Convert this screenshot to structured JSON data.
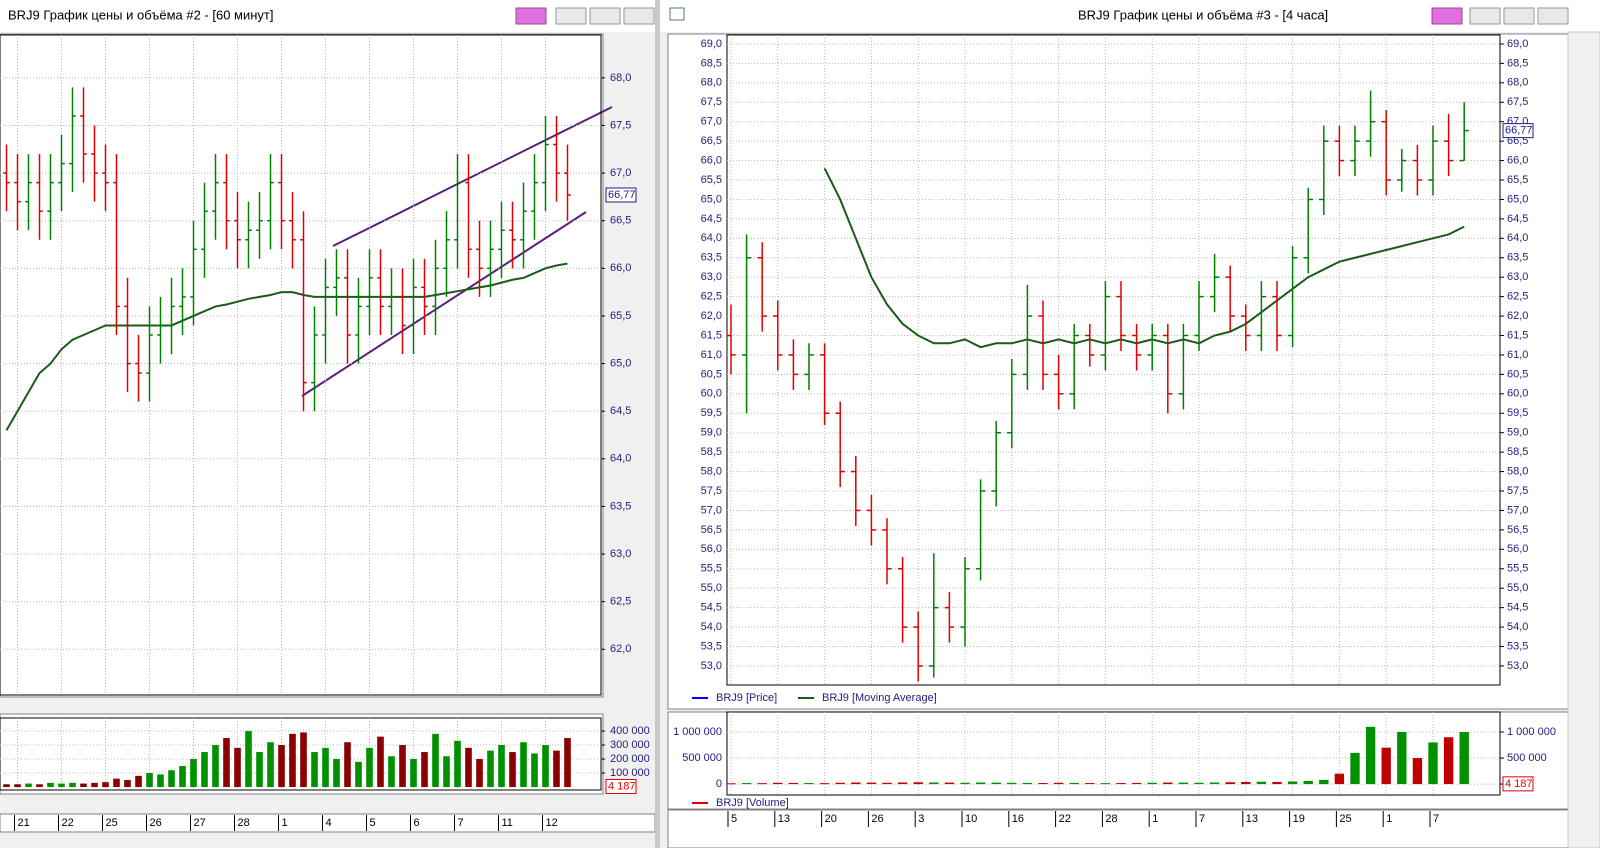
{
  "chart_data": [
    {
      "type": "ohlc",
      "title": "BRJ9 График цены и объёма #2 - [60 минут]",
      "grid": true,
      "categories": [
        null,
        "21",
        null,
        null,
        null,
        "22",
        null,
        null,
        null,
        "25",
        null,
        null,
        null,
        "26",
        null,
        null,
        null,
        "27",
        null,
        null,
        null,
        "28",
        null,
        null,
        null,
        "1",
        null,
        null,
        null,
        "4",
        null,
        null,
        null,
        "5",
        null,
        null,
        null,
        "6",
        null,
        null,
        null,
        "7",
        null,
        null,
        null,
        "11",
        null,
        null,
        null,
        "12",
        null,
        null
      ],
      "ylim": [
        61.52,
        68.45
      ],
      "yticks": [
        {
          "value": 62.0,
          "label": "62,0"
        },
        {
          "value": 62.5,
          "label": "62,5"
        },
        {
          "value": 63.0,
          "label": "63,0"
        },
        {
          "value": 63.5,
          "label": "63,5"
        },
        {
          "value": 64.0,
          "label": "64,0"
        },
        {
          "value": 64.5,
          "label": "64,5"
        },
        {
          "value": 65.0,
          "label": "65,0"
        },
        {
          "value": 65.5,
          "label": "65,5"
        },
        {
          "value": 66.0,
          "label": "66,0"
        },
        {
          "value": 66.5,
          "label": "66,5"
        },
        {
          "value": 67.0,
          "label": "67,0"
        },
        {
          "value": 67.5,
          "label": "67,5"
        },
        {
          "value": 68.0,
          "label": "68,0"
        }
      ],
      "price": {
        "up_color": "#008000",
        "down_color": "#e00000",
        "open": [
          67.0,
          66.9,
          66.7,
          66.9,
          66.6,
          66.9,
          67.1,
          67.6,
          67.2,
          67.0,
          66.9,
          65.6,
          65.0,
          64.9,
          65.3,
          65.4,
          65.6,
          65.7,
          66.2,
          66.6,
          66.9,
          66.5,
          66.3,
          66.4,
          66.5,
          66.9,
          66.5,
          66.3,
          64.8,
          65.3,
          65.8,
          65.9,
          65.3,
          65.6,
          65.9,
          65.6,
          65.7,
          65.4,
          65.8,
          65.6,
          66.0,
          66.3,
          66.9,
          66.2,
          66.0,
          66.2,
          66.4,
          66.3,
          66.6,
          66.9,
          67.3,
          67.0
        ],
        "high": [
          67.3,
          67.2,
          67.2,
          67.2,
          67.2,
          67.4,
          67.9,
          67.9,
          67.5,
          67.3,
          67.2,
          65.9,
          65.3,
          65.6,
          65.7,
          65.9,
          66.0,
          66.5,
          66.9,
          67.2,
          67.2,
          66.8,
          66.7,
          66.8,
          67.2,
          67.2,
          66.8,
          66.6,
          65.6,
          66.1,
          66.2,
          66.2,
          65.9,
          66.2,
          66.2,
          66.0,
          66.0,
          66.1,
          66.1,
          66.3,
          66.6,
          67.2,
          67.2,
          66.5,
          66.5,
          66.7,
          66.7,
          66.9,
          67.2,
          67.6,
          67.6,
          67.3
        ],
        "low": [
          66.6,
          66.4,
          66.4,
          66.3,
          66.3,
          66.6,
          66.8,
          66.9,
          66.7,
          66.6,
          65.3,
          64.7,
          64.6,
          64.6,
          65.0,
          65.1,
          65.3,
          65.4,
          65.9,
          66.3,
          66.2,
          66.0,
          66.0,
          66.1,
          66.2,
          66.2,
          66.0,
          64.5,
          64.5,
          65.0,
          65.5,
          65.0,
          65.0,
          65.3,
          65.3,
          65.3,
          65.1,
          65.1,
          65.3,
          65.3,
          65.7,
          66.0,
          65.9,
          65.7,
          65.7,
          65.9,
          66.0,
          66.0,
          66.3,
          66.6,
          66.7,
          66.5
        ],
        "close": [
          66.9,
          66.7,
          66.9,
          66.6,
          66.9,
          67.1,
          67.6,
          67.2,
          67.0,
          66.9,
          65.6,
          65.0,
          64.9,
          65.3,
          65.4,
          65.6,
          65.7,
          66.2,
          66.6,
          66.9,
          66.5,
          66.3,
          66.4,
          66.5,
          66.9,
          66.5,
          66.3,
          64.8,
          65.3,
          65.8,
          65.9,
          65.3,
          65.6,
          65.9,
          65.6,
          65.7,
          65.4,
          65.8,
          65.6,
          66.0,
          66.3,
          66.9,
          66.2,
          66.0,
          66.2,
          66.4,
          66.3,
          66.6,
          66.9,
          67.3,
          67.0,
          66.77
        ]
      },
      "moving_average": {
        "color": "#1a5c1a",
        "values": [
          64.3,
          64.5,
          64.7,
          64.9,
          65.0,
          65.15,
          65.25,
          65.3,
          65.35,
          65.4,
          65.4,
          65.4,
          65.4,
          65.4,
          65.4,
          65.4,
          65.45,
          65.5,
          65.55,
          65.6,
          65.62,
          65.65,
          65.68,
          65.7,
          65.72,
          65.75,
          65.75,
          65.72,
          65.7,
          65.7,
          65.7,
          65.7,
          65.7,
          65.7,
          65.7,
          65.7,
          65.7,
          65.7,
          65.7,
          65.72,
          65.74,
          65.76,
          65.78,
          65.8,
          65.82,
          65.85,
          65.88,
          65.9,
          65.95,
          66.0,
          66.03,
          66.05
        ]
      },
      "volume": {
        "up_color": "#009000",
        "down_color": "#8b0000",
        "ylim": [
          -21000,
          493000
        ],
        "yticks": [
          {
            "value": 100000,
            "label": "100 000"
          },
          {
            "value": 200000,
            "label": "200 000"
          },
          {
            "value": 300000,
            "label": "300 000"
          },
          {
            "value": 400000,
            "label": "400 000"
          }
        ],
        "values": [
          20000,
          20000,
          25000,
          20000,
          30000,
          25000,
          30000,
          25000,
          30000,
          35000,
          60000,
          50000,
          80000,
          100000,
          90000,
          120000,
          150000,
          200000,
          250000,
          300000,
          350000,
          280000,
          400000,
          250000,
          320000,
          300000,
          380000,
          390000,
          250000,
          280000,
          200000,
          320000,
          180000,
          280000,
          360000,
          220000,
          300000,
          200000,
          250000,
          380000,
          220000,
          330000,
          280000,
          200000,
          260000,
          300000,
          250000,
          320000,
          240000,
          300000,
          260000,
          350000
        ]
      },
      "last_price": {
        "value": 66.77,
        "label": "66,77"
      },
      "last_volume": {
        "value": 4187,
        "label": "4 187"
      }
    },
    {
      "type": "ohlc",
      "title": "BRJ9 График цены и объёма #3 - [4 часа]",
      "grid": true,
      "categories": [
        "5",
        null,
        null,
        "13",
        null,
        null,
        "20",
        null,
        null,
        "26",
        null,
        null,
        "3",
        null,
        null,
        "10",
        null,
        null,
        "16",
        null,
        null,
        "22",
        null,
        null,
        "28",
        null,
        null,
        "1",
        null,
        null,
        "7",
        null,
        null,
        "13",
        null,
        null,
        "19",
        null,
        null,
        "25",
        null,
        null,
        "1",
        null,
        null,
        "7",
        null,
        null
      ],
      "ylim": [
        52.51,
        69.23
      ],
      "yticks": [
        {
          "value": 53.0,
          "label": "53,0"
        },
        {
          "value": 53.5,
          "label": "53,5"
        },
        {
          "value": 54.0,
          "label": "54,0"
        },
        {
          "value": 54.5,
          "label": "54,5"
        },
        {
          "value": 55.0,
          "label": "55,0"
        },
        {
          "value": 55.5,
          "label": "55,5"
        },
        {
          "value": 56.0,
          "label": "56,0"
        },
        {
          "value": 56.5,
          "label": "56,5"
        },
        {
          "value": 57.0,
          "label": "57,0"
        },
        {
          "value": 57.5,
          "label": "57,5"
        },
        {
          "value": 58.0,
          "label": "58,0"
        },
        {
          "value": 58.5,
          "label": "58,5"
        },
        {
          "value": 59.0,
          "label": "59,0"
        },
        {
          "value": 59.5,
          "label": "59,5"
        },
        {
          "value": 60.0,
          "label": "60,0"
        },
        {
          "value": 60.5,
          "label": "60,5"
        },
        {
          "value": 61.0,
          "label": "61,0"
        },
        {
          "value": 61.5,
          "label": "61,5"
        },
        {
          "value": 62.0,
          "label": "62,0"
        },
        {
          "value": 62.5,
          "label": "62,5"
        },
        {
          "value": 63.0,
          "label": "63,0"
        },
        {
          "value": 63.5,
          "label": "63,5"
        },
        {
          "value": 64.0,
          "label": "64,0"
        },
        {
          "value": 64.5,
          "label": "64,5"
        },
        {
          "value": 65.0,
          "label": "65,0"
        },
        {
          "value": 65.5,
          "label": "65,5"
        },
        {
          "value": 66.0,
          "label": "66,0"
        },
        {
          "value": 66.5,
          "label": "66,5"
        },
        {
          "value": 67.0,
          "label": "67,0"
        },
        {
          "value": 67.5,
          "label": "67,5"
        },
        {
          "value": 68.0,
          "label": "68,0"
        },
        {
          "value": 68.5,
          "label": "68,5"
        },
        {
          "value": 69.0,
          "label": "69,0"
        }
      ],
      "price": {
        "name": "BRJ9 [Price]",
        "color": "#0000ff",
        "up_color": "#008000",
        "down_color": "#e00000",
        "open": [
          61.5,
          61.0,
          63.5,
          62.0,
          61.0,
          60.5,
          61.0,
          59.5,
          58.0,
          57.0,
          56.5,
          55.5,
          54.0,
          53.0,
          54.5,
          54.0,
          55.5,
          57.5,
          59.0,
          60.5,
          62.0,
          60.5,
          60.0,
          61.5,
          61.0,
          62.5,
          61.5,
          61.0,
          61.5,
          60.0,
          61.5,
          62.5,
          63.0,
          62.0,
          61.5,
          62.5,
          61.5,
          63.5,
          65.0,
          66.5,
          66.0,
          66.5,
          67.0,
          65.5,
          66.0,
          65.5,
          66.5,
          66.0
        ],
        "high": [
          62.3,
          64.1,
          63.9,
          62.4,
          61.4,
          61.3,
          61.3,
          59.8,
          58.4,
          57.4,
          56.8,
          55.8,
          54.4,
          55.9,
          54.9,
          55.8,
          57.8,
          59.3,
          60.9,
          62.8,
          62.4,
          61.0,
          61.8,
          61.8,
          62.9,
          62.9,
          61.8,
          61.8,
          61.8,
          61.8,
          62.9,
          63.6,
          63.3,
          62.3,
          62.9,
          62.9,
          63.8,
          65.3,
          66.9,
          66.9,
          66.9,
          67.8,
          67.3,
          66.3,
          66.4,
          66.9,
          67.2,
          67.5
        ],
        "low": [
          60.5,
          59.5,
          61.6,
          60.6,
          60.1,
          60.1,
          59.2,
          57.6,
          56.6,
          56.1,
          55.1,
          53.6,
          52.6,
          52.7,
          53.6,
          53.5,
          55.2,
          57.1,
          58.6,
          60.1,
          60.1,
          59.6,
          59.6,
          60.7,
          60.6,
          61.1,
          60.6,
          60.6,
          59.5,
          59.6,
          61.1,
          62.1,
          61.6,
          61.1,
          61.1,
          61.1,
          61.2,
          63.1,
          64.6,
          65.6,
          65.6,
          66.1,
          65.1,
          65.2,
          65.1,
          65.1,
          65.6,
          66.0
        ],
        "close": [
          61.0,
          63.5,
          62.0,
          61.0,
          60.5,
          61.0,
          59.5,
          58.0,
          57.0,
          56.5,
          55.5,
          54.0,
          53.0,
          54.5,
          54.0,
          55.5,
          57.5,
          59.0,
          60.5,
          62.0,
          60.5,
          60.0,
          61.5,
          61.0,
          62.5,
          61.5,
          61.0,
          61.5,
          60.0,
          61.5,
          62.5,
          63.0,
          62.0,
          61.5,
          62.5,
          61.5,
          63.5,
          65.0,
          66.5,
          66.0,
          66.5,
          67.0,
          65.5,
          66.0,
          65.5,
          66.5,
          66.0,
          66.77
        ]
      },
      "moving_average": {
        "name": "BRJ9 [Moving Average]",
        "color": "#1a5c1a",
        "values": [
          null,
          null,
          null,
          null,
          null,
          null,
          65.8,
          65.0,
          64.0,
          63.0,
          62.3,
          61.8,
          61.5,
          61.3,
          61.3,
          61.4,
          61.2,
          61.3,
          61.3,
          61.4,
          61.3,
          61.4,
          61.3,
          61.4,
          61.3,
          61.4,
          61.3,
          61.4,
          61.3,
          61.4,
          61.3,
          61.5,
          61.6,
          61.8,
          62.1,
          62.4,
          62.7,
          63.0,
          63.2,
          63.4,
          63.5,
          63.6,
          63.7,
          63.8,
          63.9,
          64.0,
          64.1,
          64.3
        ]
      },
      "volume": {
        "name": "BRJ9 [Volume]",
        "color": "#e00000",
        "up_color": "#009000",
        "down_color": "#c00000",
        "ylim": [
          -210000,
          1385000
        ],
        "yticks": [
          0,
          {
            "value": 500000,
            "label": "500 000"
          },
          {
            "value": 1000000,
            "label": "1 000 000"
          }
        ],
        "values": [
          15000,
          20000,
          18000,
          25000,
          22000,
          20000,
          18000,
          25000,
          30000,
          28000,
          25000,
          30000,
          35000,
          30000,
          28000,
          25000,
          30000,
          28000,
          25000,
          22000,
          20000,
          25000,
          22000,
          20000,
          18000,
          20000,
          22000,
          25000,
          30000,
          28000,
          25000,
          30000,
          35000,
          40000,
          45000,
          40000,
          50000,
          60000,
          80000,
          200000,
          600000,
          1100000,
          700000,
          1000000,
          500000,
          800000,
          900000,
          1000000
        ]
      },
      "last_price": {
        "value": 66.77,
        "label": "66,77"
      },
      "last_volume": {
        "value": 4187,
        "label": "4 187"
      }
    }
  ]
}
